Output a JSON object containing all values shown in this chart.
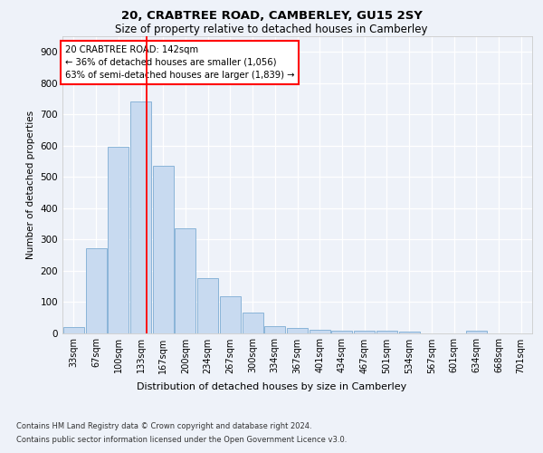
{
  "title1": "20, CRABTREE ROAD, CAMBERLEY, GU15 2SY",
  "title2": "Size of property relative to detached houses in Camberley",
  "xlabel": "Distribution of detached houses by size in Camberley",
  "ylabel": "Number of detached properties",
  "categories": [
    "33sqm",
    "67sqm",
    "100sqm",
    "133sqm",
    "167sqm",
    "200sqm",
    "234sqm",
    "267sqm",
    "300sqm",
    "334sqm",
    "367sqm",
    "401sqm",
    "434sqm",
    "467sqm",
    "501sqm",
    "534sqm",
    "567sqm",
    "601sqm",
    "634sqm",
    "668sqm",
    "701sqm"
  ],
  "values": [
    20,
    270,
    595,
    740,
    535,
    335,
    175,
    118,
    65,
    22,
    15,
    10,
    7,
    6,
    6,
    5,
    0,
    0,
    8,
    0,
    0
  ],
  "bar_color": "#c8daf0",
  "bar_edge_color": "#8ab4d8",
  "vline_color": "red",
  "annotation_title": "20 CRABTREE ROAD: 142sqm",
  "annotation_line1": "← 36% of detached houses are smaller (1,056)",
  "annotation_line2": "63% of semi-detached houses are larger (1,839) →",
  "annotation_box_color": "white",
  "annotation_box_edge": "red",
  "ylim": [
    0,
    950
  ],
  "yticks": [
    0,
    100,
    200,
    300,
    400,
    500,
    600,
    700,
    800,
    900
  ],
  "footnote1": "Contains HM Land Registry data © Crown copyright and database right 2024.",
  "footnote2": "Contains public sector information licensed under the Open Government Licence v3.0.",
  "bg_color": "#eef2f9",
  "grid_color": "#ffffff"
}
